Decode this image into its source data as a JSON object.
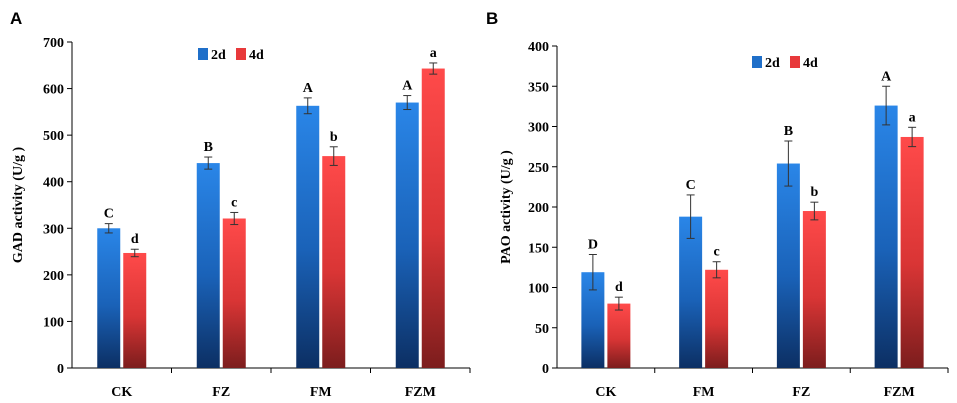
{
  "colors": {
    "series_2d": "#1f6fc9",
    "series_4d": "#e8393b",
    "axis": "#000000"
  },
  "chart_data": [
    {
      "panel": "A",
      "type": "bar",
      "title": "",
      "xlabel": "",
      "ylabel": "GAD activity (U/g )",
      "ylim": [
        0,
        700
      ],
      "yticks": [
        0,
        100,
        200,
        300,
        400,
        500,
        600,
        700
      ],
      "categories": [
        "CK",
        "FZ",
        "FM",
        "FZM"
      ],
      "legend": {
        "position": "top-left",
        "entries": [
          "2d",
          "4d"
        ]
      },
      "series": [
        {
          "name": "2d",
          "values": [
            300,
            440,
            563,
            570
          ],
          "errors": [
            10,
            13,
            17,
            15
          ],
          "labels": [
            "C",
            "B",
            "A",
            "A"
          ]
        },
        {
          "name": "4d",
          "values": [
            247,
            321,
            455,
            643
          ],
          "errors": [
            8,
            13,
            20,
            12
          ],
          "labels": [
            "d",
            "c",
            "b",
            "a"
          ]
        }
      ]
    },
    {
      "panel": "B",
      "type": "bar",
      "title": "",
      "xlabel": "",
      "ylabel": "PAO activity (U/g )",
      "ylim": [
        0,
        400
      ],
      "yticks": [
        0,
        50,
        100,
        150,
        200,
        250,
        300,
        350,
        400
      ],
      "categories": [
        "CK",
        "FM",
        "FZ",
        "FZM"
      ],
      "legend": {
        "position": "top-center",
        "entries": [
          "2d",
          "4d"
        ]
      },
      "series": [
        {
          "name": "2d",
          "values": [
            119,
            188,
            254,
            326
          ],
          "errors": [
            22,
            27,
            28,
            24
          ],
          "labels": [
            "D",
            "C",
            "B",
            "A"
          ]
        },
        {
          "name": "4d",
          "values": [
            80,
            122,
            195,
            287
          ],
          "errors": [
            8,
            10,
            11,
            12
          ],
          "labels": [
            "d",
            "c",
            "b",
            "a"
          ]
        }
      ]
    }
  ]
}
